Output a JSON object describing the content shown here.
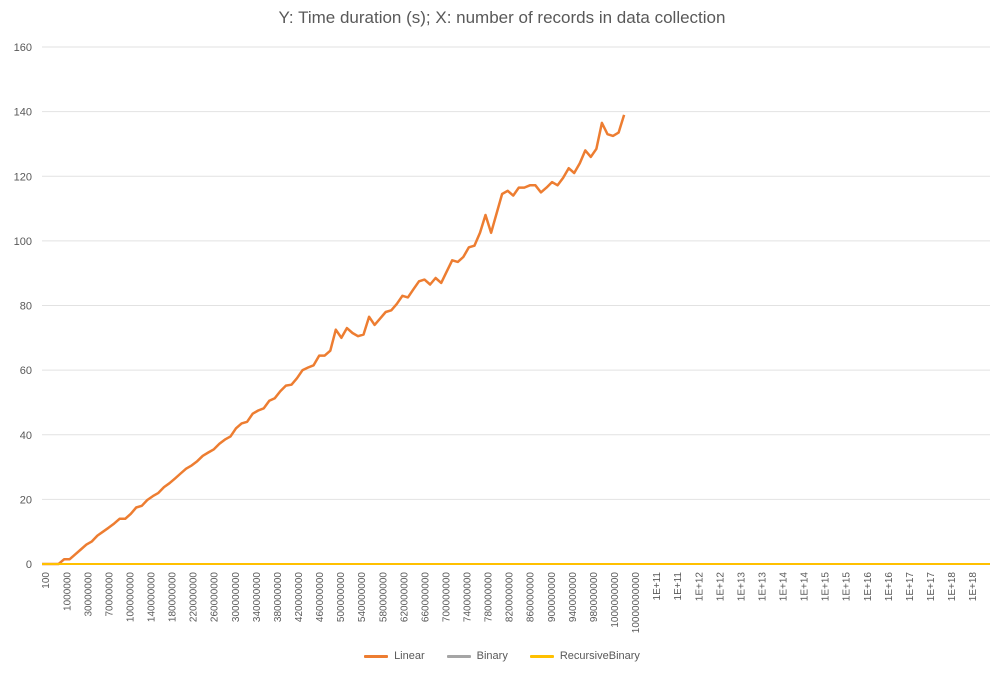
{
  "chart_data": {
    "type": "line",
    "title": "Y: Time duration (s); X: number of records in data collection",
    "xlabel": "",
    "ylabel": "",
    "ylim": [
      0,
      160
    ],
    "yticks": [
      0,
      20,
      40,
      60,
      80,
      100,
      120,
      140,
      160
    ],
    "grid": "horizontal",
    "legend_position": "bottom",
    "n_points": 172,
    "xtick_labels": [
      "100",
      "1000000",
      "30000000",
      "70000000",
      "100000000",
      "140000000",
      "180000000",
      "220000000",
      "260000000",
      "300000000",
      "340000000",
      "380000000",
      "420000000",
      "460000000",
      "500000000",
      "540000000",
      "580000000",
      "620000000",
      "660000000",
      "700000000",
      "740000000",
      "780000000",
      "820000000",
      "860000000",
      "900000000",
      "940000000",
      "980000000",
      "1000000000",
      "10000000000",
      "1E+11",
      "1E+11",
      "1E+12",
      "1E+12",
      "1E+13",
      "1E+13",
      "1E+14",
      "1E+14",
      "1E+15",
      "1E+15",
      "1E+16",
      "1E+16",
      "1E+17",
      "1E+17",
      "1E+18",
      "1E+18"
    ],
    "series": [
      {
        "name": "Linear",
        "color": "#ED7D31",
        "values": [
          0,
          0,
          0,
          0,
          1.5,
          1.5,
          3,
          4.5,
          6,
          7,
          8.8,
          10,
          11.2,
          12.5,
          14,
          14,
          15.5,
          17.5,
          18,
          19.8,
          21,
          22,
          23.8,
          25,
          26.5,
          28,
          29.5,
          30.5,
          31.8,
          33.5,
          34.5,
          35.5,
          37.2,
          38.5,
          39.5,
          42,
          43.5,
          44,
          46.5,
          47.5,
          48.2,
          50.5,
          51.3,
          53.5,
          55.2,
          55.5,
          57.5,
          60,
          60.8,
          61.5,
          64.5,
          64.5,
          66,
          72.5,
          70,
          73,
          71.5,
          70.5,
          71,
          76.5,
          74,
          76,
          78,
          78.5,
          80.5,
          83,
          82.5,
          85,
          87.5,
          88,
          86.5,
          88.5,
          87,
          90.5,
          94,
          93.5,
          95,
          98,
          98.5,
          102.5,
          108,
          102.5,
          108.5,
          114.5,
          115.5,
          114,
          116.5,
          116.5,
          117.2,
          117.2,
          115,
          116.5,
          118.2,
          117.2,
          119.5,
          122.5,
          121,
          124,
          128,
          126,
          128.5,
          136.5,
          133,
          132.5,
          133.5,
          139
        ]
      },
      {
        "name": "Binary",
        "color": "#A5A5A5",
        "values": "zeros"
      },
      {
        "name": "RecursiveBinary",
        "color": "#FFC000",
        "values": "zeros"
      }
    ]
  }
}
